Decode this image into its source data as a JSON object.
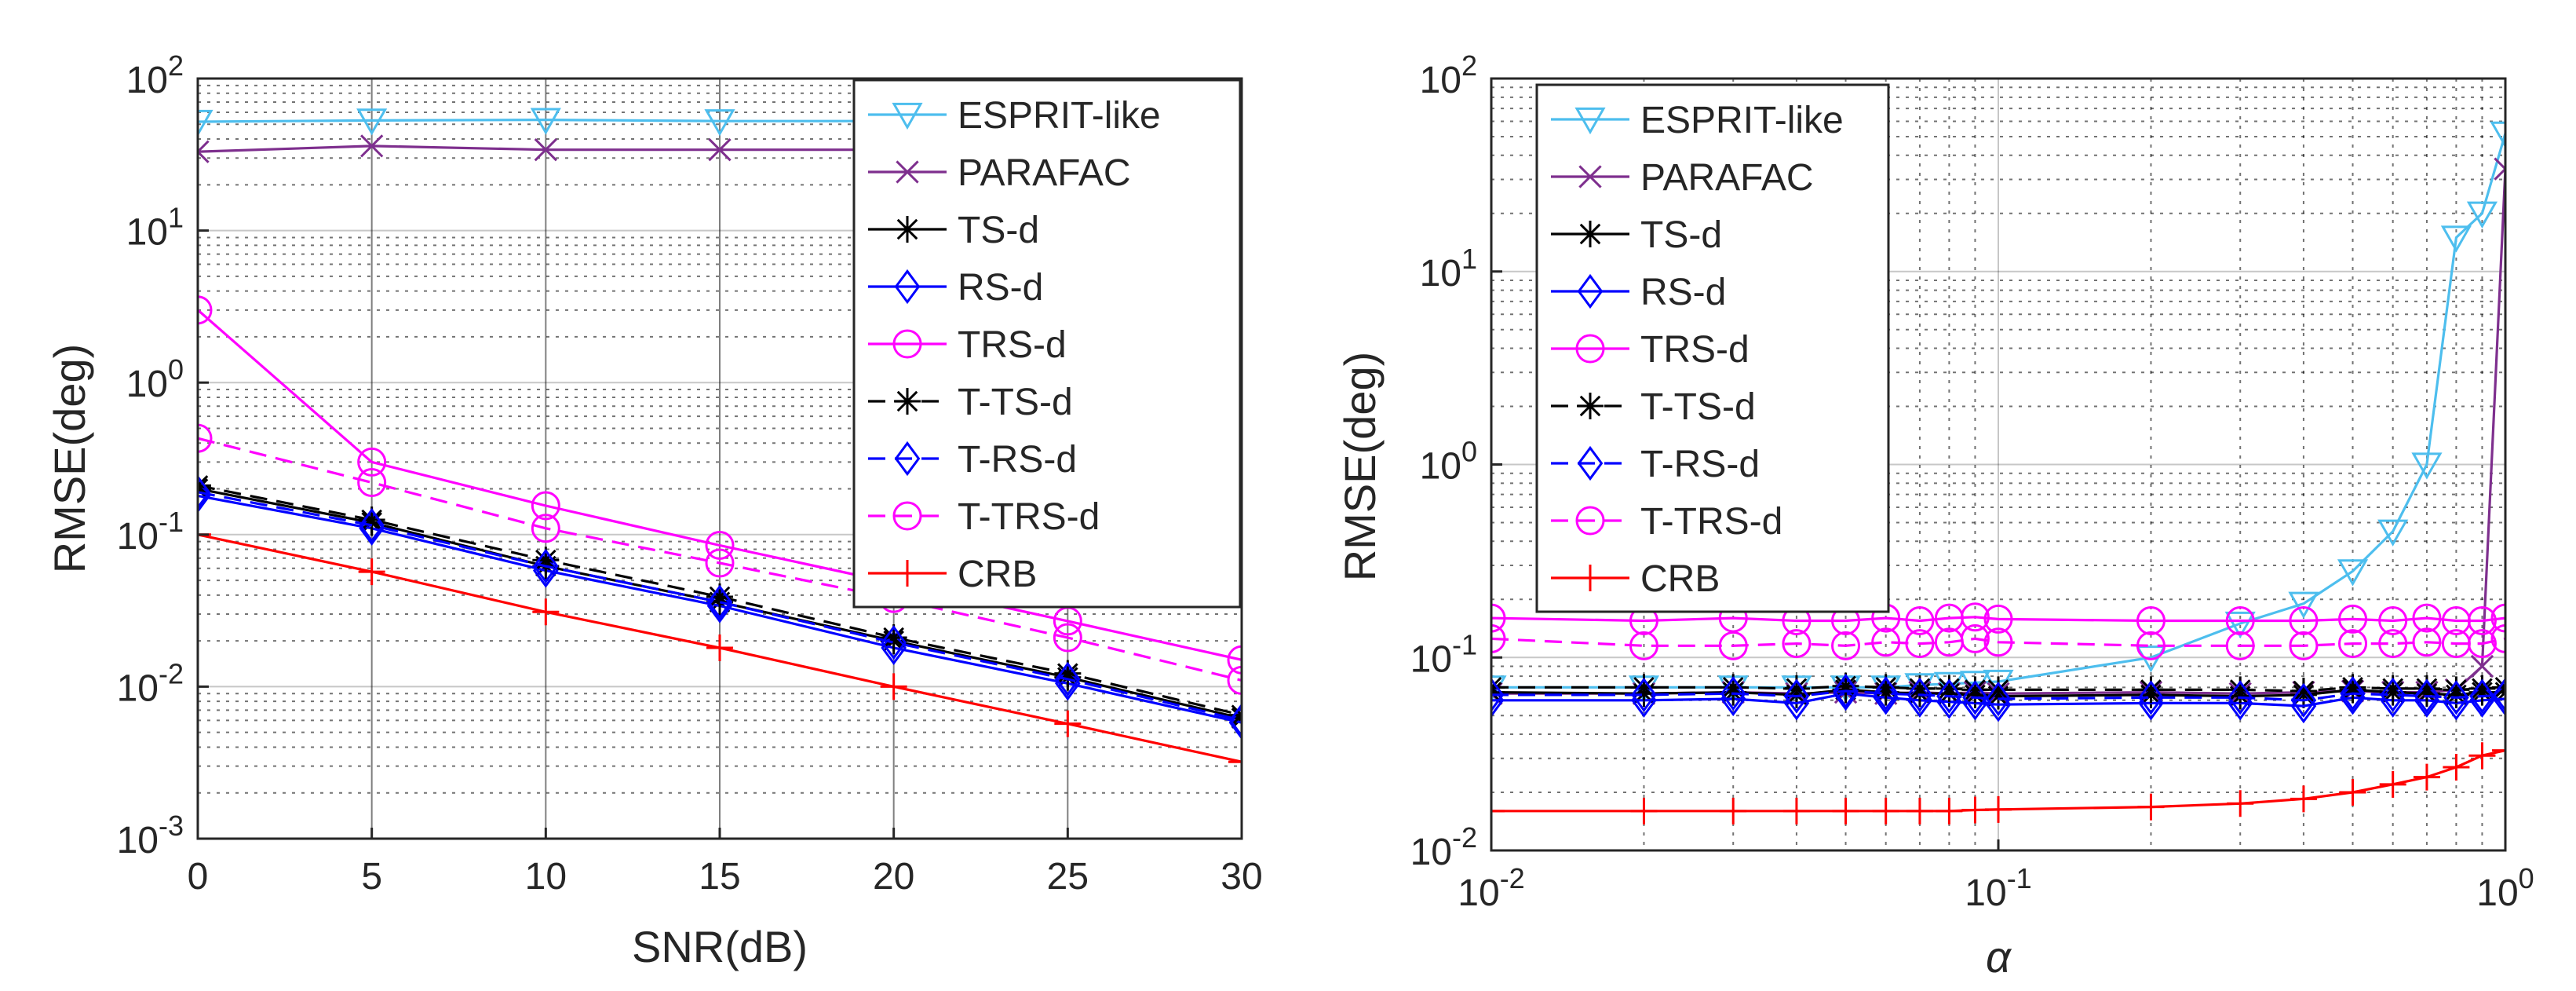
{
  "chart_data": [
    {
      "type": "line",
      "xscale": "linear",
      "yscale": "log",
      "xlabel": "SNR(dB)",
      "ylabel": "RMSE(deg)",
      "xlim": [
        0,
        30
      ],
      "ylim_exp": [
        -3,
        2
      ],
      "xticks": [
        0,
        5,
        10,
        15,
        20,
        25,
        30
      ],
      "xtick_labels": [
        "0",
        "5",
        "10",
        "15",
        "20",
        "25",
        "30"
      ],
      "ytick_base": "10",
      "ytick_exps": [
        "-3",
        "-2",
        "-1",
        "0",
        "1",
        "2"
      ],
      "grid": true,
      "legend_position": "top-right",
      "x": [
        0,
        5,
        10,
        15,
        20,
        25,
        30
      ],
      "series": [
        {
          "name": "ESPRIT-like",
          "color": "#4dbeee",
          "marker": "triangle-down",
          "dash": "solid",
          "values": [
            52,
            53,
            53.5,
            52.5,
            52.5,
            53,
            52.5
          ]
        },
        {
          "name": "PARAFAC",
          "color": "#7e2f8e",
          "marker": "x",
          "dash": "solid",
          "values": [
            33,
            36,
            34,
            34,
            34,
            34,
            34
          ]
        },
        {
          "name": "TS-d",
          "color": "#000000",
          "marker": "asterisk",
          "dash": "solid",
          "values": [
            0.2,
            0.12,
            0.062,
            0.036,
            0.02,
            0.0115,
            0.0062
          ]
        },
        {
          "name": "RS-d",
          "color": "#0000ff",
          "marker": "diamond",
          "dash": "solid",
          "values": [
            0.18,
            0.11,
            0.058,
            0.034,
            0.018,
            0.0105,
            0.0058
          ]
        },
        {
          "name": "TRS-d",
          "color": "#ff00ff",
          "marker": "circle",
          "dash": "solid",
          "values": [
            3.0,
            0.3,
            0.155,
            0.085,
            0.048,
            0.027,
            0.015
          ]
        },
        {
          "name": "T-TS-d",
          "color": "#000000",
          "marker": "asterisk",
          "dash": "dashed",
          "values": [
            0.21,
            0.125,
            0.068,
            0.039,
            0.021,
            0.0122,
            0.0065
          ]
        },
        {
          "name": "T-RS-d",
          "color": "#0000ff",
          "marker": "diamond",
          "dash": "dashed",
          "values": [
            0.19,
            0.115,
            0.062,
            0.036,
            0.0195,
            0.0112,
            0.006
          ]
        },
        {
          "name": "T-TRS-d",
          "color": "#ff00ff",
          "marker": "circle",
          "dash": "dashed",
          "values": [
            0.43,
            0.22,
            0.11,
            0.065,
            0.038,
            0.021,
            0.011
          ]
        },
        {
          "name": "CRB",
          "color": "#ff0000",
          "marker": "plus",
          "dash": "solid",
          "values": [
            0.1,
            0.057,
            0.031,
            0.018,
            0.01,
            0.0057,
            0.0032
          ]
        }
      ]
    },
    {
      "type": "line",
      "xscale": "log",
      "yscale": "log",
      "xlabel": "α",
      "ylabel": "RMSE(deg)",
      "xlim_exp": [
        -2,
        0
      ],
      "ylim_exp": [
        -2,
        2
      ],
      "xtick_base": "10",
      "xtick_exps": [
        "-2",
        "-1",
        "0"
      ],
      "ytick_base": "10",
      "ytick_exps": [
        "-2",
        "-1",
        "0",
        "1",
        "2"
      ],
      "grid": true,
      "legend_position": "top-left",
      "x": [
        0.01,
        0.02,
        0.03,
        0.04,
        0.05,
        0.06,
        0.07,
        0.08,
        0.09,
        0.1,
        0.2,
        0.3,
        0.4,
        0.5,
        0.6,
        0.7,
        0.8,
        0.9,
        1.0
      ],
      "series": [
        {
          "name": "ESPRIT-like",
          "color": "#4dbeee",
          "marker": "triangle-down",
          "dash": "solid",
          "values": [
            0.07,
            0.07,
            0.07,
            0.07,
            0.07,
            0.07,
            0.072,
            0.073,
            0.074,
            0.075,
            0.1,
            0.15,
            0.19,
            0.28,
            0.45,
            1.0,
            15,
            20,
            52
          ]
        },
        {
          "name": "PARAFAC",
          "color": "#7e2f8e",
          "marker": "x",
          "dash": "solid",
          "values": [
            0.065,
            0.065,
            0.066,
            0.065,
            0.066,
            0.065,
            0.066,
            0.065,
            0.066,
            0.065,
            0.066,
            0.065,
            0.066,
            0.067,
            0.066,
            0.066,
            0.068,
            0.09,
            34
          ]
        },
        {
          "name": "TS-d",
          "color": "#000000",
          "marker": "asterisk",
          "dash": "solid",
          "values": [
            0.066,
            0.065,
            0.066,
            0.064,
            0.068,
            0.066,
            0.065,
            0.065,
            0.064,
            0.063,
            0.064,
            0.063,
            0.064,
            0.068,
            0.066,
            0.065,
            0.064,
            0.066,
            0.066
          ]
        },
        {
          "name": "RS-d",
          "color": "#0000ff",
          "marker": "diamond",
          "dash": "solid",
          "values": [
            0.06,
            0.06,
            0.061,
            0.058,
            0.065,
            0.062,
            0.06,
            0.059,
            0.058,
            0.057,
            0.058,
            0.058,
            0.056,
            0.062,
            0.06,
            0.06,
            0.058,
            0.06,
            0.061
          ]
        },
        {
          "name": "TRS-d",
          "color": "#ff00ff",
          "marker": "circle",
          "dash": "solid",
          "values": [
            0.16,
            0.155,
            0.16,
            0.155,
            0.155,
            0.16,
            0.155,
            0.16,
            0.162,
            0.158,
            0.155,
            0.155,
            0.155,
            0.158,
            0.155,
            0.16,
            0.155,
            0.155,
            0.16
          ]
        },
        {
          "name": "T-TS-d",
          "color": "#000000",
          "marker": "asterisk",
          "dash": "dashed",
          "values": [
            0.07,
            0.07,
            0.07,
            0.069,
            0.071,
            0.07,
            0.069,
            0.069,
            0.068,
            0.068,
            0.068,
            0.068,
            0.067,
            0.07,
            0.069,
            0.069,
            0.068,
            0.069,
            0.07
          ]
        },
        {
          "name": "T-RS-d",
          "color": "#0000ff",
          "marker": "diamond",
          "dash": "dashed",
          "values": [
            0.064,
            0.064,
            0.065,
            0.063,
            0.067,
            0.065,
            0.064,
            0.063,
            0.062,
            0.061,
            0.062,
            0.062,
            0.06,
            0.065,
            0.064,
            0.063,
            0.062,
            0.063,
            0.064
          ]
        },
        {
          "name": "T-TRS-d",
          "color": "#ff00ff",
          "marker": "circle",
          "dash": "dashed",
          "values": [
            0.125,
            0.115,
            0.115,
            0.118,
            0.115,
            0.12,
            0.118,
            0.12,
            0.125,
            0.12,
            0.115,
            0.115,
            0.115,
            0.118,
            0.118,
            0.12,
            0.118,
            0.118,
            0.125
          ]
        },
        {
          "name": "CRB",
          "color": "#ff0000",
          "marker": "plus",
          "dash": "solid",
          "values": [
            0.016,
            0.016,
            0.016,
            0.016,
            0.016,
            0.016,
            0.016,
            0.016,
            0.0162,
            0.0163,
            0.0168,
            0.0175,
            0.0185,
            0.02,
            0.022,
            0.024,
            0.027,
            0.031,
            0.033
          ]
        }
      ]
    }
  ]
}
